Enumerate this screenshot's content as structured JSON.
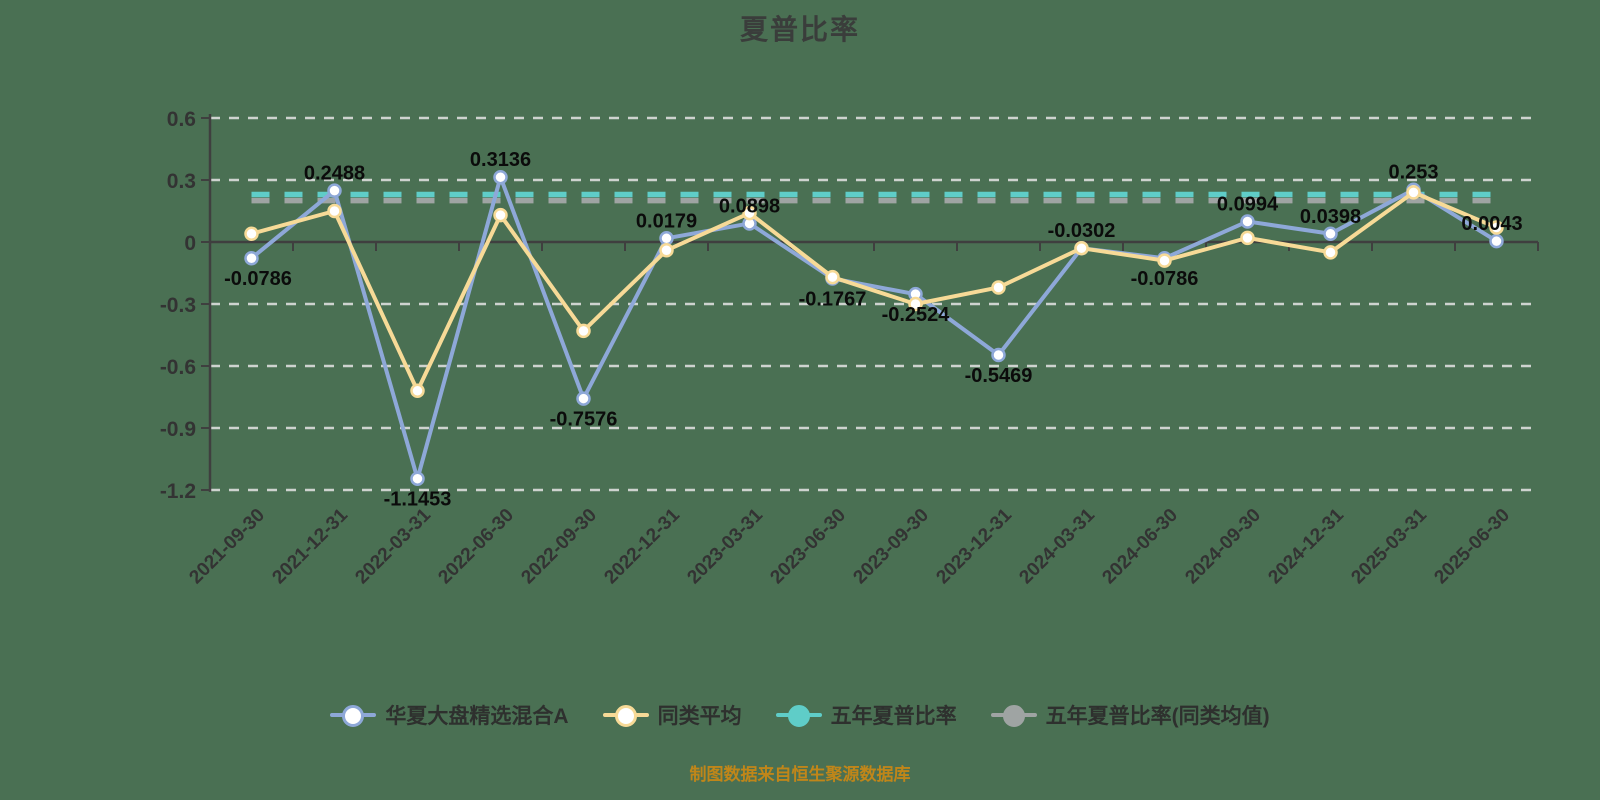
{
  "title": "夏普比率",
  "caption": "制图数据来自恒生聚源数据库",
  "colors": {
    "background": "#4a7053",
    "fund_line": "#8EA8D8",
    "peer_line": "#F7DA97",
    "five_year_line": "#5FCDC8",
    "five_year_peer_line": "#9FA4A3",
    "gridline": "#ced3cf",
    "axis": "#3f3f3f",
    "tick_label": "#333333",
    "data_label": "#0b0b0b",
    "caption_text": "#c08619"
  },
  "chart_data": {
    "type": "line",
    "title": "夏普比率",
    "categories": [
      "2021-09-30",
      "2021-12-31",
      "2022-03-31",
      "2022-06-30",
      "2022-09-30",
      "2022-12-31",
      "2023-03-31",
      "2023-06-30",
      "2023-09-30",
      "2023-12-31",
      "2024-03-31",
      "2024-06-30",
      "2024-09-30",
      "2024-12-31",
      "2025-03-31",
      "2025-06-30"
    ],
    "series": [
      {
        "name": "华夏大盘精选混合A",
        "color": "#8EA8D8",
        "marker": "hollow",
        "values": [
          -0.0786,
          0.2488,
          -1.1453,
          0.3136,
          -0.7576,
          0.0179,
          0.0898,
          -0.1767,
          -0.2524,
          -0.5469,
          -0.0302,
          -0.0786,
          0.0994,
          0.0398,
          0.253,
          0.0043
        ],
        "labels": [
          "-0.0786",
          "0.2488",
          "-1.1453",
          "0.3136",
          "-0.7576",
          "0.0179",
          "0.0898",
          "-0.1767",
          "-0.2524",
          "-0.5469",
          "-0.0302",
          "-0.0786",
          "0.0994",
          "0.0398",
          "0.253",
          "0.0043"
        ],
        "label_positions": [
          "below",
          "above",
          "below",
          "above",
          "below",
          "above",
          "above",
          "below",
          "below",
          "below",
          "above",
          "below",
          "above",
          "above",
          "above",
          "above"
        ]
      },
      {
        "name": "同类平均",
        "color": "#F7DA97",
        "marker": "hollow",
        "values": [
          0.04,
          0.15,
          -0.72,
          0.13,
          -0.43,
          -0.04,
          0.14,
          -0.17,
          -0.3,
          -0.22,
          -0.03,
          -0.09,
          0.02,
          -0.05,
          0.24,
          0.07
        ],
        "labels": null,
        "label_positions": null
      },
      {
        "name": "五年夏普比率",
        "color": "#5FCDC8",
        "marker": "solid",
        "constant_value": 0.23,
        "style": "dashed"
      },
      {
        "name": "五年夏普比率(同类均值)",
        "color": "#9FA4A3",
        "marker": "solid",
        "constant_value": 0.2,
        "style": "dashed"
      }
    ],
    "ylim": [
      -1.2,
      0.6
    ],
    "yticks": [
      0.6,
      0.3,
      0,
      -0.3,
      -0.6,
      -0.9,
      -1.2
    ],
    "xlabel": "",
    "ylabel": "",
    "grid": "horizontal-dashed",
    "legend_position": "bottom"
  }
}
